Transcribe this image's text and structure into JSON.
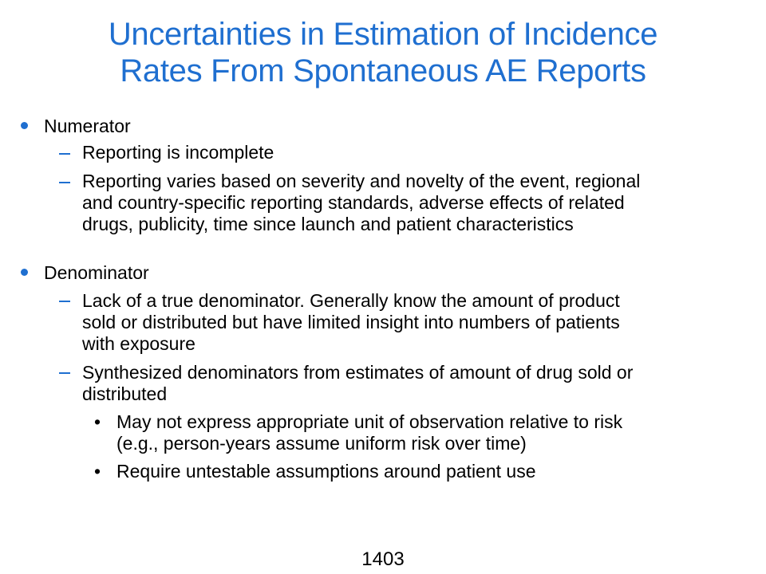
{
  "title": {
    "line1": "Uncertainties in Estimation of Incidence",
    "line2": "Rates From Spontaneous AE Reports"
  },
  "numerator": {
    "label": "Numerator",
    "sub1": "Reporting is incomplete",
    "sub2": [
      "Reporting varies based on severity and novelty of the event, regional",
      "and country-specific reporting standards, adverse effects of related",
      "drugs, publicity, time since launch and patient characteristics"
    ]
  },
  "denominator": {
    "label": "Denominator",
    "sub1": [
      "Lack of a true denominator. Generally know the amount of product",
      "sold or distributed but have limited insight into numbers of patients",
      "with exposure"
    ],
    "sub2": [
      "Synthesized denominators from estimates of amount of drug sold or",
      "distributed"
    ],
    "sub2_bullets": {
      "b1": [
        "May not express appropriate unit of observation relative to risk",
        "(e.g., person-years assume uniform risk over time)"
      ],
      "b2": "Require untestable assumptions around patient use"
    }
  },
  "page_number": "1403",
  "colors": {
    "accent": "#1f6fd0",
    "text": "#000000",
    "background": "#ffffff"
  }
}
